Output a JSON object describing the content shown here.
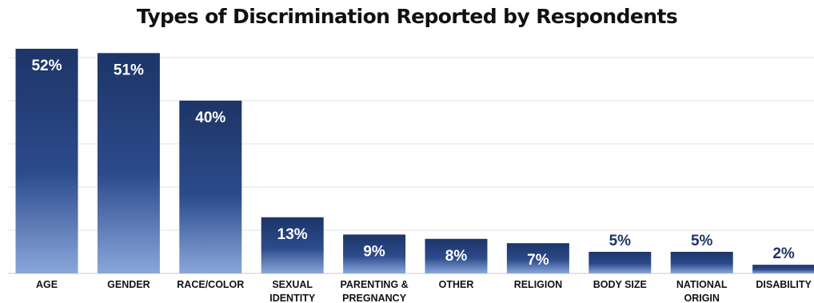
{
  "chart_data": {
    "type": "bar",
    "title": "Types of Discrimination Reported by Respondents",
    "categories": [
      [
        "AGE"
      ],
      [
        "GENDER"
      ],
      [
        "RACE/COLOR"
      ],
      [
        "SEXUAL",
        "IDENTITY"
      ],
      [
        "PARENTING &",
        "PREGNANCY"
      ],
      [
        "OTHER"
      ],
      [
        "RELIGION"
      ],
      [
        "BODY SIZE"
      ],
      [
        "NATIONAL",
        "ORIGIN"
      ],
      [
        "DISABILITY"
      ]
    ],
    "values": [
      52,
      51,
      40,
      13,
      9,
      8,
      7,
      5,
      5,
      2
    ],
    "data_labels": [
      "52%",
      "51%",
      "40%",
      "13%",
      "9%",
      "8%",
      "7%",
      "5%",
      "5%",
      "2%"
    ],
    "unit": "%",
    "ylim": [
      0,
      52
    ],
    "grid": true,
    "xlabel": "",
    "ylabel": "",
    "colors": {
      "bar_top": "#1d3567",
      "bar_mid": "#2c4b8c",
      "bar_bottom": "#8aa7dc",
      "label_inside": "#ffffff",
      "label_outside": "#1d3567"
    }
  }
}
